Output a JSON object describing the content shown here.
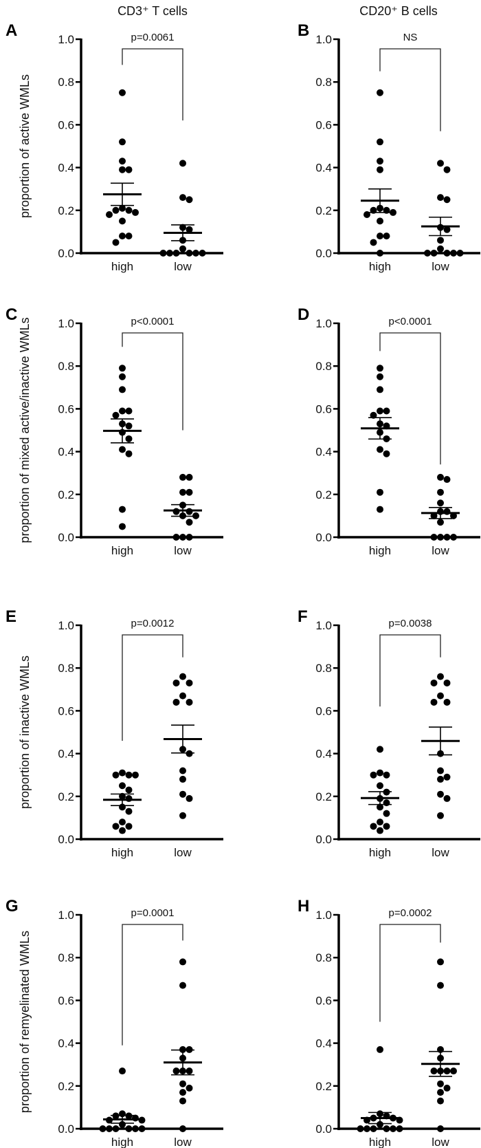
{
  "column_titles": [
    "CD3⁺ T cells",
    "CD20⁺ B cells"
  ],
  "chart_data": [
    {
      "panel": "A",
      "type": "scatter",
      "ylabel": "proportion of active WMLs",
      "categories": [
        "high",
        "low"
      ],
      "ylim": [
        0,
        1
      ],
      "yticks": [
        "0.0",
        "0.2",
        "0.4",
        "0.6",
        "0.8",
        "1.0"
      ],
      "annotation": "p=0.0061",
      "series": [
        {
          "category": "high",
          "values": [
            0.75,
            0.52,
            0.43,
            0.39,
            0.39,
            0.21,
            0.18,
            0.2,
            0.19,
            0.2,
            0.15,
            0.08,
            0.08,
            0.05
          ],
          "mean": 0.275,
          "sem": 0.052
        },
        {
          "category": "low",
          "values": [
            0.42,
            0.26,
            0.25,
            0.12,
            0.11,
            0.06,
            0.02,
            0,
            0,
            0,
            0,
            0,
            0
          ],
          "mean": 0.095,
          "sem": 0.037
        }
      ]
    },
    {
      "panel": "B",
      "type": "scatter",
      "ylabel": "",
      "categories": [
        "high",
        "low"
      ],
      "ylim": [
        0,
        1
      ],
      "yticks": [
        "0.0",
        "0.2",
        "0.4",
        "0.6",
        "0.8",
        "1.0"
      ],
      "annotation": "NS",
      "series": [
        {
          "category": "high",
          "values": [
            0.75,
            0.52,
            0.43,
            0.39,
            0.2,
            0.21,
            0.18,
            0.19,
            0.2,
            0.15,
            0.08,
            0.08,
            0.05,
            0
          ],
          "mean": 0.245,
          "sem": 0.055
        },
        {
          "category": "low",
          "values": [
            0.42,
            0.39,
            0.26,
            0.25,
            0.12,
            0.11,
            0.06,
            0.02,
            0,
            0,
            0,
            0,
            0
          ],
          "mean": 0.125,
          "sem": 0.043
        }
      ]
    },
    {
      "panel": "C",
      "type": "scatter",
      "ylabel": "proportion of mixed active/inactive WMLs",
      "categories": [
        "high",
        "low"
      ],
      "ylim": [
        0,
        1
      ],
      "yticks": [
        "0.0",
        "0.2",
        "0.4",
        "0.6",
        "0.8",
        "1.0"
      ],
      "annotation": "p<0.0001",
      "series": [
        {
          "category": "high",
          "values": [
            0.79,
            0.75,
            0.69,
            0.59,
            0.57,
            0.59,
            0.52,
            0.53,
            0.49,
            0.46,
            0.41,
            0.39,
            0.13,
            0.05
          ],
          "mean": 0.497,
          "sem": 0.056
        },
        {
          "category": "low",
          "values": [
            0.28,
            0.28,
            0.21,
            0.21,
            0.15,
            0.12,
            0.12,
            0.1,
            0.1,
            0.07,
            0,
            0,
            0
          ],
          "mean": 0.125,
          "sem": 0.027
        }
      ]
    },
    {
      "panel": "D",
      "type": "scatter",
      "ylabel": "",
      "categories": [
        "high",
        "low"
      ],
      "ylim": [
        0,
        1
      ],
      "yticks": [
        "0.0",
        "0.2",
        "0.4",
        "0.6",
        "0.8",
        "1.0"
      ],
      "annotation": "p<0.0001",
      "series": [
        {
          "category": "high",
          "values": [
            0.79,
            0.75,
            0.69,
            0.59,
            0.57,
            0.59,
            0.52,
            0.53,
            0.49,
            0.46,
            0.41,
            0.39,
            0.21,
            0.13
          ],
          "mean": 0.509,
          "sem": 0.05
        },
        {
          "category": "low",
          "values": [
            0.28,
            0.27,
            0.21,
            0.16,
            0.12,
            0.12,
            0.1,
            0.1,
            0.07,
            0,
            0,
            0,
            0
          ],
          "mean": 0.113,
          "sem": 0.026
        }
      ]
    },
    {
      "panel": "E",
      "type": "scatter",
      "ylabel": "proportion of inactive WMLs",
      "categories": [
        "high",
        "low"
      ],
      "ylim": [
        0,
        1
      ],
      "yticks": [
        "0.0",
        "0.2",
        "0.4",
        "0.6",
        "0.8",
        "1.0"
      ],
      "annotation": "p=0.0012",
      "series": [
        {
          "category": "high",
          "values": [
            0.31,
            0.3,
            0.3,
            0.3,
            0.25,
            0.23,
            0.2,
            0.19,
            0.15,
            0.13,
            0.08,
            0.06,
            0.06,
            0.04
          ],
          "mean": 0.184,
          "sem": 0.027
        },
        {
          "category": "low",
          "values": [
            0.76,
            0.73,
            0.73,
            0.67,
            0.64,
            0.64,
            0.42,
            0.4,
            0.32,
            0.28,
            0.21,
            0.19,
            0.11
          ],
          "mean": 0.468,
          "sem": 0.065
        }
      ]
    },
    {
      "panel": "F",
      "type": "scatter",
      "ylabel": "",
      "categories": [
        "high",
        "low"
      ],
      "ylim": [
        0,
        1
      ],
      "yticks": [
        "0.0",
        "0.2",
        "0.4",
        "0.6",
        "0.8",
        "1.0"
      ],
      "annotation": "p=0.0038",
      "series": [
        {
          "category": "high",
          "values": [
            0.42,
            0.31,
            0.3,
            0.3,
            0.25,
            0.22,
            0.19,
            0.17,
            0.15,
            0.12,
            0.08,
            0.06,
            0.06,
            0.04
          ],
          "mean": 0.192,
          "sem": 0.03
        },
        {
          "category": "low",
          "values": [
            0.76,
            0.73,
            0.73,
            0.67,
            0.64,
            0.64,
            0.4,
            0.32,
            0.29,
            0.28,
            0.21,
            0.19,
            0.11
          ],
          "mean": 0.459,
          "sem": 0.065
        }
      ]
    },
    {
      "panel": "G",
      "type": "scatter",
      "ylabel": "proportion of remyelinated WMLs",
      "categories": [
        "high",
        "low"
      ],
      "ylim": [
        0,
        1
      ],
      "yticks": [
        "0.0",
        "0.2",
        "0.4",
        "0.6",
        "0.8",
        "1.0"
      ],
      "annotation": "p=0.0001",
      "series": [
        {
          "category": "high",
          "values": [
            0.27,
            0.07,
            0.06,
            0.06,
            0.04,
            0.05,
            0.04,
            0.02,
            0,
            0,
            0,
            0,
            0,
            0
          ],
          "mean": 0.044,
          "sem": 0.018
        },
        {
          "category": "low",
          "values": [
            0.78,
            0.67,
            0.37,
            0.37,
            0.33,
            0.27,
            0.27,
            0.27,
            0.21,
            0.19,
            0.17,
            0.13,
            0
          ],
          "mean": 0.31,
          "sem": 0.058
        }
      ]
    },
    {
      "panel": "H",
      "type": "scatter",
      "ylabel": "",
      "categories": [
        "high",
        "low"
      ],
      "ylim": [
        0,
        1
      ],
      "yticks": [
        "0.0",
        "0.2",
        "0.4",
        "0.6",
        "0.8",
        "1.0"
      ],
      "annotation": "p=0.0002",
      "series": [
        {
          "category": "high",
          "values": [
            0.37,
            0.07,
            0.06,
            0.05,
            0.04,
            0.05,
            0.04,
            0.02,
            0,
            0,
            0,
            0,
            0,
            0
          ],
          "mean": 0.05,
          "sem": 0.026
        },
        {
          "category": "low",
          "values": [
            0.78,
            0.67,
            0.37,
            0.33,
            0.27,
            0.27,
            0.27,
            0.27,
            0.21,
            0.19,
            0.17,
            0.13,
            0
          ],
          "mean": 0.303,
          "sem": 0.058
        }
      ]
    }
  ]
}
